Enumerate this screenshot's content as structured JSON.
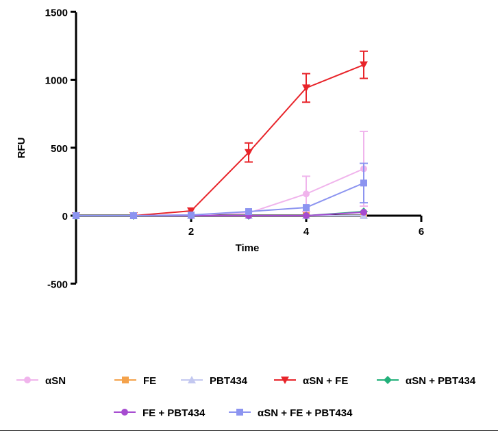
{
  "chart_data": {
    "type": "line",
    "xlabel": "Time",
    "ylabel": "RFU",
    "xlim": [
      0,
      6
    ],
    "ylim": [
      -500,
      1500
    ],
    "x_ticks": [
      "2",
      "4",
      "6"
    ],
    "y_ticks": [
      "-500",
      "0",
      "500",
      "1000",
      "1500"
    ],
    "grid": false,
    "legend_position": "bottom",
    "x": [
      0,
      1,
      2,
      3,
      4,
      5
    ],
    "series": [
      {
        "name": "αSN",
        "color": "#f0b4ec",
        "marker": "circle",
        "values": [
          0,
          0,
          5,
          20,
          160,
          345
        ],
        "error": [
          0,
          0,
          0,
          0,
          130,
          275
        ]
      },
      {
        "name": "FE",
        "color": "#f4a24b",
        "marker": "square",
        "values": [
          0,
          0,
          0,
          0,
          0,
          0
        ],
        "error": [
          0,
          0,
          0,
          0,
          0,
          0
        ]
      },
      {
        "name": "PBT434",
        "color": "#c3c8f0",
        "marker": "triangle-up",
        "values": [
          0,
          0,
          0,
          0,
          0,
          0
        ],
        "error": [
          0,
          0,
          0,
          0,
          0,
          0
        ]
      },
      {
        "name": "αSN + FE",
        "color": "#e8242a",
        "marker": "triangle-down",
        "values": [
          0,
          0,
          35,
          465,
          940,
          1110
        ],
        "error": [
          0,
          0,
          0,
          70,
          105,
          100
        ]
      },
      {
        "name": "αSN + PBT434",
        "color": "#22b07a",
        "marker": "diamond",
        "values": [
          0,
          0,
          0,
          0,
          0,
          30
        ],
        "error": [
          0,
          0,
          0,
          0,
          0,
          0
        ]
      },
      {
        "name": "FE + PBT434",
        "color": "#a64bd0",
        "marker": "circle",
        "values": [
          0,
          0,
          0,
          0,
          0,
          25
        ],
        "error": [
          0,
          0,
          0,
          0,
          0,
          0
        ]
      },
      {
        "name": "αSN + FE + PBT434",
        "color": "#8c94f0",
        "marker": "square",
        "values": [
          0,
          0,
          5,
          30,
          60,
          240
        ],
        "error": [
          0,
          0,
          0,
          0,
          0,
          145
        ]
      }
    ]
  }
}
